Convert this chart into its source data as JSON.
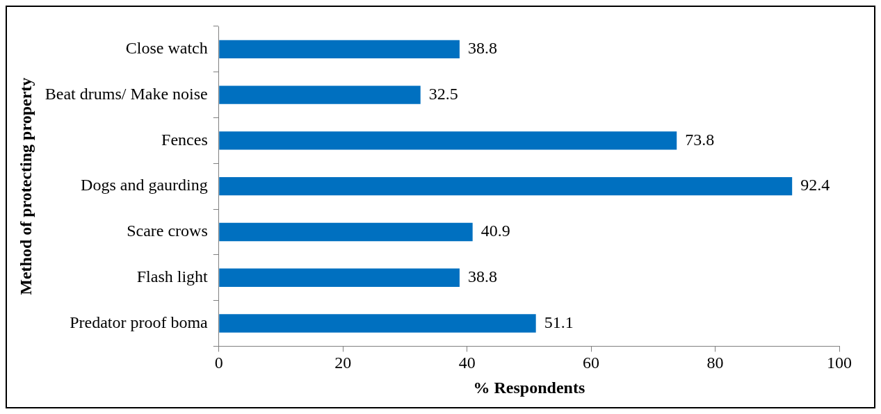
{
  "chart_data": {
    "type": "bar",
    "orientation": "horizontal",
    "xlabel": "% Respondents",
    "ylabel": "Method of protecting property",
    "categories": [
      "Close watch",
      "Beat drums/ Make noise",
      "Fences",
      "Dogs and gaurding",
      "Scare crows",
      "Flash light",
      "Predator proof boma"
    ],
    "values": [
      38.8,
      32.5,
      73.8,
      92.4,
      40.9,
      38.8,
      51.1
    ],
    "color": "#0070c0",
    "xlim": [
      0,
      100
    ],
    "xticks": [
      0,
      20,
      40,
      60,
      80,
      100
    ],
    "grid": false,
    "legend": false,
    "data_labels": true
  }
}
